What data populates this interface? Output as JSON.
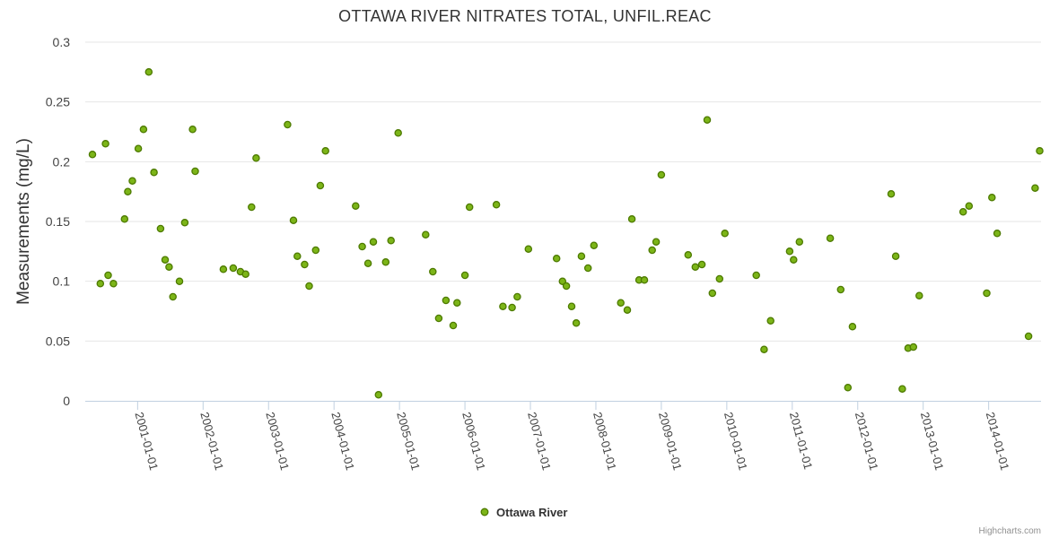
{
  "chart_data": {
    "type": "scatter",
    "title": "OTTAWA RIVER NITRATES TOTAL, UNFIL.REAC",
    "xlabel": "",
    "ylabel": "Measurements (mg/L)",
    "ylim": [
      0,
      0.3
    ],
    "yticks": [
      "0",
      "0.05",
      "0.1",
      "0.15",
      "0.2",
      "0.25",
      "0.3"
    ],
    "yticks_values": [
      0,
      0.05,
      0.1,
      0.15,
      0.2,
      0.25,
      0.3
    ],
    "xlim": [
      2000.2,
      2014.8
    ],
    "xticks": [
      "2001-01-01",
      "2002-01-01",
      "2003-01-01",
      "2004-01-01",
      "2005-01-01",
      "2006-01-01",
      "2007-01-01",
      "2008-01-01",
      "2009-01-01",
      "2010-01-01",
      "2011-01-01",
      "2012-01-01",
      "2013-01-01",
      "2014-01-01"
    ],
    "xticks_values": [
      2001,
      2002,
      2003,
      2004,
      2005,
      2006,
      2007,
      2008,
      2009,
      2010,
      2011,
      2012,
      2013,
      2014
    ],
    "legend": "bottom-center",
    "colors": {
      "marker_fill": "#7cb518",
      "marker_stroke": "#4d7a00"
    },
    "series": [
      {
        "name": "Ottawa River",
        "points": [
          [
            2000.31,
            0.206
          ],
          [
            2000.43,
            0.098
          ],
          [
            2000.51,
            0.215
          ],
          [
            2000.55,
            0.105
          ],
          [
            2000.63,
            0.098
          ],
          [
            2000.8,
            0.152
          ],
          [
            2000.85,
            0.175
          ],
          [
            2000.92,
            0.184
          ],
          [
            2001.01,
            0.211
          ],
          [
            2001.09,
            0.227
          ],
          [
            2001.17,
            0.275
          ],
          [
            2001.25,
            0.191
          ],
          [
            2001.35,
            0.144
          ],
          [
            2001.42,
            0.118
          ],
          [
            2001.48,
            0.112
          ],
          [
            2001.54,
            0.087
          ],
          [
            2001.64,
            0.1
          ],
          [
            2001.72,
            0.149
          ],
          [
            2001.84,
            0.227
          ],
          [
            2001.88,
            0.192
          ],
          [
            2002.31,
            0.11
          ],
          [
            2002.46,
            0.111
          ],
          [
            2002.57,
            0.108
          ],
          [
            2002.65,
            0.106
          ],
          [
            2002.74,
            0.162
          ],
          [
            2002.81,
            0.203
          ],
          [
            2003.29,
            0.231
          ],
          [
            2003.38,
            0.151
          ],
          [
            2003.44,
            0.121
          ],
          [
            2003.55,
            0.114
          ],
          [
            2003.62,
            0.096
          ],
          [
            2003.72,
            0.126
          ],
          [
            2003.79,
            0.18
          ],
          [
            2003.87,
            0.209
          ],
          [
            2004.33,
            0.163
          ],
          [
            2004.43,
            0.129
          ],
          [
            2004.52,
            0.115
          ],
          [
            2004.6,
            0.133
          ],
          [
            2004.68,
            0.005
          ],
          [
            2004.79,
            0.116
          ],
          [
            2004.87,
            0.134
          ],
          [
            2004.98,
            0.224
          ],
          [
            2005.4,
            0.139
          ],
          [
            2005.51,
            0.108
          ],
          [
            2005.6,
            0.069
          ],
          [
            2005.71,
            0.084
          ],
          [
            2005.82,
            0.063
          ],
          [
            2005.88,
            0.082
          ],
          [
            2006.0,
            0.105
          ],
          [
            2006.07,
            0.162
          ],
          [
            2006.48,
            0.164
          ],
          [
            2006.58,
            0.079
          ],
          [
            2006.72,
            0.078
          ],
          [
            2006.8,
            0.087
          ],
          [
            2006.97,
            0.127
          ],
          [
            2007.4,
            0.119
          ],
          [
            2007.49,
            0.1
          ],
          [
            2007.55,
            0.096
          ],
          [
            2007.63,
            0.079
          ],
          [
            2007.7,
            0.065
          ],
          [
            2007.78,
            0.121
          ],
          [
            2007.88,
            0.111
          ],
          [
            2007.97,
            0.13
          ],
          [
            2008.38,
            0.082
          ],
          [
            2008.48,
            0.076
          ],
          [
            2008.55,
            0.152
          ],
          [
            2008.66,
            0.101
          ],
          [
            2008.74,
            0.101
          ],
          [
            2008.86,
            0.126
          ],
          [
            2008.92,
            0.133
          ],
          [
            2009.0,
            0.189
          ],
          [
            2009.41,
            0.122
          ],
          [
            2009.52,
            0.112
          ],
          [
            2009.62,
            0.114
          ],
          [
            2009.7,
            0.235
          ],
          [
            2009.78,
            0.09
          ],
          [
            2009.89,
            0.102
          ],
          [
            2009.97,
            0.14
          ],
          [
            2010.45,
            0.105
          ],
          [
            2010.57,
            0.043
          ],
          [
            2010.67,
            0.067
          ],
          [
            2010.96,
            0.125
          ],
          [
            2011.02,
            0.118
          ],
          [
            2011.11,
            0.133
          ],
          [
            2011.58,
            0.136
          ],
          [
            2011.74,
            0.093
          ],
          [
            2011.85,
            0.011
          ],
          [
            2011.92,
            0.062
          ],
          [
            2012.51,
            0.173
          ],
          [
            2012.58,
            0.121
          ],
          [
            2012.68,
            0.01
          ],
          [
            2012.77,
            0.044
          ],
          [
            2012.85,
            0.045
          ],
          [
            2012.94,
            0.088
          ],
          [
            2013.61,
            0.158
          ],
          [
            2013.7,
            0.163
          ],
          [
            2013.97,
            0.09
          ],
          [
            2014.05,
            0.17
          ],
          [
            2014.13,
            0.14
          ],
          [
            2014.61,
            0.054
          ],
          [
            2014.71,
            0.178
          ],
          [
            2014.78,
            0.209
          ]
        ]
      }
    ]
  },
  "credits": "Highcharts.com"
}
